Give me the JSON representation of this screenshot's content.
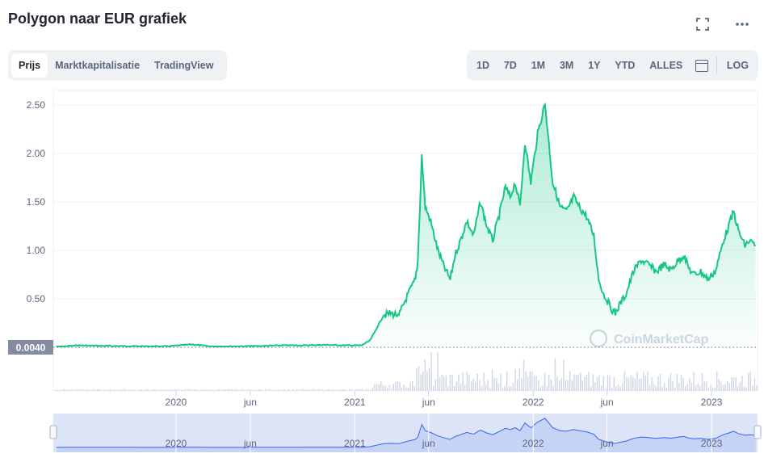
{
  "header": {
    "title": "Polygon naar EUR grafiek",
    "fullscreen_icon": "fullscreen-icon",
    "more_icon": "more-icon"
  },
  "tabs": [
    {
      "label": "Prijs",
      "active": true
    },
    {
      "label": "Marktkapitalisatie",
      "active": false
    },
    {
      "label": "TradingView",
      "active": false
    }
  ],
  "ranges": {
    "items": [
      "1D",
      "7D",
      "1M",
      "3M",
      "1Y",
      "YTD",
      "ALLES"
    ],
    "calendar_icon": "calendar-icon",
    "log_label": "LOG"
  },
  "watermark": "CoinMarketCap",
  "colors": {
    "line": "#16c784",
    "fill_top": "#16c784",
    "grid": "#f0f2f5",
    "axis_text": "#58667e",
    "volume": "#cfd6e4",
    "nav_fill": "#dde4f8",
    "nav_line": "#3861fb",
    "price_badge": "#858ca2"
  },
  "chart_data": {
    "type": "area",
    "series": [
      {
        "x": [
          "2019-05-01",
          "2019-06-15",
          "2019-08-01",
          "2019-09-15",
          "2019-11-01",
          "2019-12-15",
          "2020-02-01",
          "2020-03-15",
          "2020-05-01",
          "2020-06-15",
          "2020-08-01",
          "2020-09-15",
          "2020-11-01",
          "2020-12-15",
          "2021-01-15",
          "2021-02-01",
          "2021-02-15",
          "2021-03-01",
          "2021-03-15",
          "2021-04-01",
          "2021-04-20",
          "2021-05-05",
          "2021-05-10",
          "2021-05-18",
          "2021-05-25",
          "2021-06-05",
          "2021-06-20",
          "2021-07-01",
          "2021-07-15",
          "2021-07-25",
          "2021-08-05",
          "2021-08-18",
          "2021-09-01",
          "2021-09-15",
          "2021-09-28",
          "2021-10-10",
          "2021-10-25",
          "2021-11-05",
          "2021-11-15",
          "2021-11-25",
          "2021-12-05",
          "2021-12-15",
          "2021-12-27",
          "2022-01-10",
          "2022-01-25",
          "2022-02-10",
          "2022-02-25",
          "2022-03-10",
          "2022-03-25",
          "2022-04-05",
          "2022-04-20",
          "2022-05-05",
          "2022-05-15",
          "2022-05-25",
          "2022-06-10",
          "2022-06-18",
          "2022-06-28",
          "2022-07-10",
          "2022-07-25",
          "2022-08-10",
          "2022-08-25",
          "2022-09-10",
          "2022-09-25",
          "2022-10-10",
          "2022-10-25",
          "2022-11-05",
          "2022-11-15",
          "2022-11-25",
          "2022-12-10",
          "2022-12-25",
          "2023-01-10",
          "2023-01-25",
          "2023-02-05",
          "2023-02-15",
          "2023-02-25",
          "2023-03-10",
          "2023-03-20",
          "2023-04-01"
        ],
        "y": [
          0.004,
          0.02,
          0.015,
          0.012,
          0.01,
          0.01,
          0.03,
          0.008,
          0.01,
          0.012,
          0.02,
          0.02,
          0.025,
          0.02,
          0.02,
          0.07,
          0.2,
          0.33,
          0.35,
          0.33,
          0.55,
          0.7,
          0.9,
          1.98,
          1.45,
          1.3,
          1.0,
          0.85,
          0.7,
          0.95,
          1.1,
          1.3,
          1.15,
          1.5,
          1.25,
          1.1,
          1.4,
          1.65,
          1.55,
          1.7,
          1.45,
          2.12,
          1.7,
          2.2,
          2.52,
          1.7,
          1.45,
          1.4,
          1.55,
          1.45,
          1.35,
          1.15,
          0.7,
          0.55,
          0.4,
          0.35,
          0.45,
          0.55,
          0.78,
          0.9,
          0.85,
          0.78,
          0.85,
          0.8,
          0.9,
          0.95,
          0.82,
          0.75,
          0.78,
          0.7,
          0.8,
          1.1,
          1.25,
          1.4,
          1.2,
          1.05,
          1.1,
          1.05
        ]
      }
    ],
    "xticks": [
      "2020",
      "jun",
      "2021",
      "jun",
      "2022",
      "jun",
      "2023"
    ],
    "yticks": [
      "2.50",
      "2.00",
      "1.50",
      "1.00",
      "0.50"
    ],
    "ylim": [
      0.0,
      2.65
    ],
    "current_price_label": "0.0040",
    "navigator_ticks": [
      "2020",
      "jun",
      "2021",
      "jun",
      "2022",
      "jun",
      "2023"
    ],
    "grid": true,
    "legend": "none"
  }
}
